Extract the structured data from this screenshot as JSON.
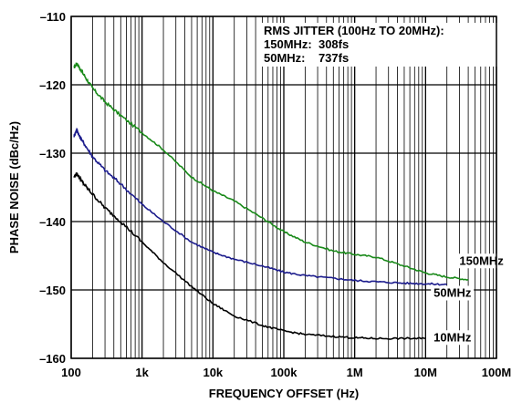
{
  "chart_data": {
    "type": "line",
    "xlabel": "FREQUENCY OFFSET (Hz)",
    "ylabel": "PHASE NOISE (dBc/Hz)",
    "xscale": "log",
    "xlim": [
      100,
      100000000
    ],
    "ylim": [
      -160,
      -110
    ],
    "grid": true,
    "x_ticks": [
      100,
      1000,
      10000,
      100000,
      1000000,
      10000000,
      100000000
    ],
    "x_tick_labels": [
      "100",
      "1k",
      "10k",
      "100k",
      "1M",
      "10M",
      "100M"
    ],
    "y_ticks": [
      -160,
      -150,
      -140,
      -130,
      -120,
      -110
    ],
    "y_tick_labels": [
      "–160",
      "–150",
      "–140",
      "–130",
      "–120",
      "–110"
    ],
    "annotation": {
      "lines": [
        "RMS JITTER (100Hz TO 20MHz):",
        "150MHz:  308fs",
        "50MHz:    737fs"
      ]
    },
    "series": [
      {
        "name": "150MHz",
        "color": "#1a8a1a",
        "x": [
          110,
          120,
          130,
          150,
          200,
          300,
          500,
          1000,
          2000,
          5000,
          10000,
          20000,
          50000,
          100000,
          200000,
          500000,
          1000000,
          2000000,
          5000000,
          10000000,
          20000000,
          40000000
        ],
        "y": [
          -117.5,
          -116.8,
          -117.5,
          -118.5,
          -120.5,
          -122.5,
          -124.5,
          -127,
          -129.5,
          -133.5,
          -135.5,
          -137,
          -139.5,
          -141.5,
          -143,
          -144.3,
          -144.8,
          -145.2,
          -146.5,
          -147.5,
          -148.1,
          -148.5
        ]
      },
      {
        "name": "50MHz",
        "color": "#1c1c8c",
        "x": [
          110,
          120,
          130,
          150,
          200,
          300,
          500,
          1000,
          2000,
          5000,
          10000,
          20000,
          50000,
          100000,
          200000,
          500000,
          1000000,
          2000000,
          5000000,
          10000000,
          20000000
        ],
        "y": [
          -127.5,
          -126.5,
          -127.5,
          -128.5,
          -130.5,
          -132.5,
          -134.5,
          -137.5,
          -140,
          -143,
          -144.5,
          -145.5,
          -146.5,
          -147.4,
          -147.9,
          -148.3,
          -148.6,
          -148.8,
          -149,
          -149.1,
          -149.2
        ]
      },
      {
        "name": "10MHz",
        "color": "#000000",
        "x": [
          110,
          120,
          130,
          150,
          200,
          300,
          500,
          1000,
          2000,
          5000,
          10000,
          20000,
          50000,
          100000,
          200000,
          500000,
          1000000,
          2000000,
          5000000,
          10000000
        ],
        "y": [
          -133.5,
          -133,
          -133.5,
          -134.5,
          -136,
          -138,
          -140,
          -143,
          -146,
          -149.5,
          -152,
          -153.8,
          -155.2,
          -156,
          -156.5,
          -156.8,
          -157,
          -157.1,
          -157.1,
          -157.1
        ]
      }
    ],
    "series_labels": [
      {
        "text": "150MHz",
        "x": 30000000,
        "y": -146.3
      },
      {
        "text": "50MHz",
        "x": 13000000,
        "y": -151.0
      },
      {
        "text": "10MHz",
        "x": 13000000,
        "y": -157.5
      }
    ]
  }
}
